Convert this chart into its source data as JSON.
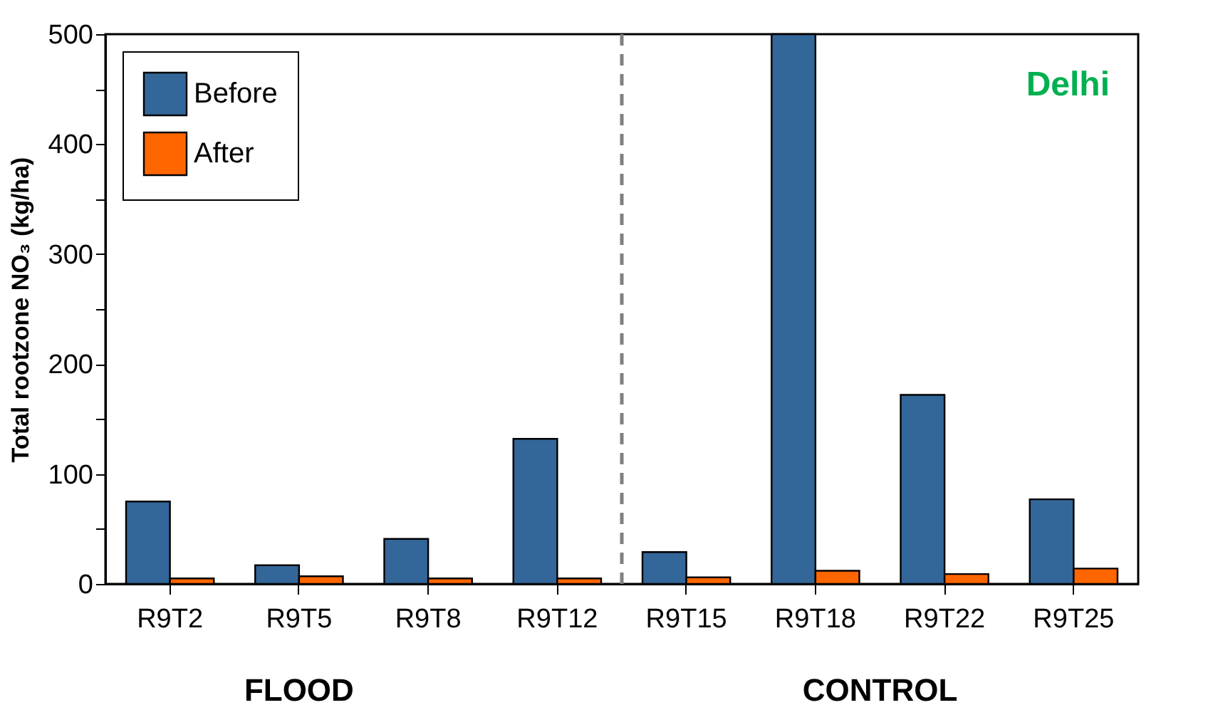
{
  "chart_data": {
    "type": "bar",
    "ylabel": "Total rootzone NO₃ (kg/ha)",
    "categories": [
      "R9T2",
      "R9T5",
      "R9T8",
      "R9T12",
      "R9T15",
      "R9T18",
      "R9T22",
      "R9T25"
    ],
    "series": [
      {
        "name": "Before",
        "color": "#336699",
        "values": [
          75,
          17,
          41,
          132,
          29,
          500,
          172,
          77
        ]
      },
      {
        "name": "After",
        "color": "#ff6600",
        "values": [
          5,
          7,
          5,
          5,
          6,
          12,
          9,
          14
        ]
      }
    ],
    "ylim": [
      0,
      500
    ],
    "yticks": [
      0,
      {
        "value": 50,
        "label": null
      },
      100,
      {
        "value": 150,
        "label": null
      },
      200,
      {
        "value": 250,
        "label": null
      },
      300,
      {
        "value": 350,
        "label": null
      },
      400,
      {
        "value": 450,
        "label": null
      },
      500
    ],
    "annotations": [
      "FLOOD",
      "CONTROL",
      "Delhi"
    ],
    "legend": "top left",
    "grid": false
  }
}
